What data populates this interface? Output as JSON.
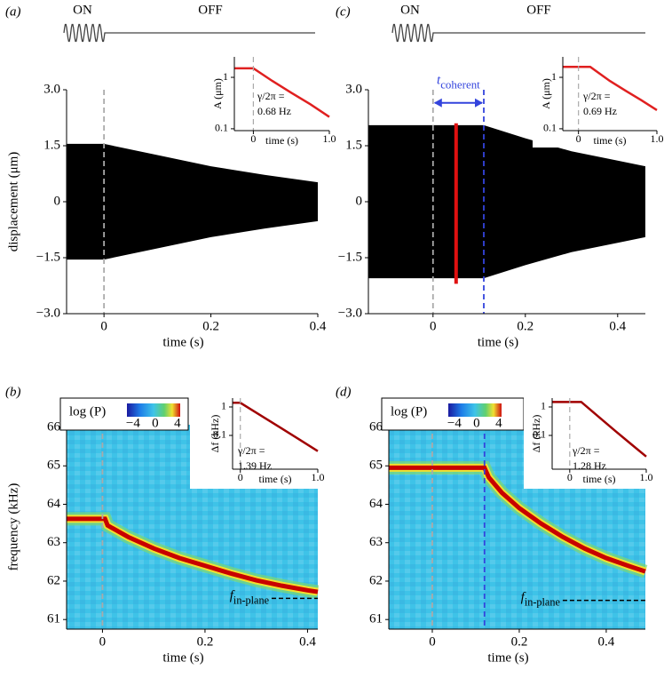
{
  "chart_data": [
    {
      "type": "envelope",
      "label": "(a)",
      "drive_labels": [
        "ON",
        "OFF"
      ],
      "ylabel": "displacement (μm)",
      "xlabel": "time (s)",
      "xlim": [
        -0.07,
        0.4
      ],
      "ylim": [
        -3,
        3
      ],
      "xticks": [
        0,
        0.2,
        0.4
      ],
      "yticks": [
        {
          "value": 3,
          "label": "3.0"
        },
        1.5,
        0,
        {
          "value": -1.5,
          "label": "−1.5"
        },
        {
          "value": -3,
          "label": "−3.0"
        }
      ],
      "x": [
        -0.07,
        0,
        0.1,
        0.2,
        0.3,
        0.4
      ],
      "values": [
        1.55,
        1.55,
        1.25,
        0.95,
        0.72,
        0.52
      ],
      "color": "#000000",
      "events": [
        {
          "x": 0,
          "color": "#aaaaaa"
        }
      ],
      "inset": {
        "type": "line",
        "log_y": true,
        "ylabel": "A (μm)",
        "xlabel": "time (s)",
        "xlim": [
          -0.25,
          1
        ],
        "ylim": [
          0.092,
          2.5
        ],
        "xticks": [
          0,
          {
            "value": 1,
            "label": "1.0"
          }
        ],
        "yticks": [
          1,
          0.1
        ],
        "x": [
          -0.25,
          0,
          0.25,
          0.5,
          0.75,
          1
        ],
        "values": [
          1.5,
          1.5,
          0.85,
          0.5,
          0.3,
          0.17
        ],
        "color": "#e02020",
        "events": [
          {
            "x": 0,
            "color": "#aaaaaa"
          }
        ],
        "annotation": [
          "γ/2π =",
          "0.68 Hz"
        ]
      }
    },
    {
      "type": "spectrogram",
      "label": "(b)",
      "ylabel": "frequency (kHz)",
      "xlabel": "time (s)",
      "xlim": [
        -0.07,
        0.42
      ],
      "ylim": [
        60.75,
        66.07
      ],
      "xticks": [
        0,
        0.2,
        0.4
      ],
      "yticks": [
        61,
        62,
        63,
        64,
        65,
        66
      ],
      "x": [
        -0.07,
        0.005,
        0.01,
        0.05,
        0.1,
        0.15,
        0.2,
        0.25,
        0.3,
        0.35,
        0.4,
        0.42
      ],
      "values": [
        63.62,
        63.62,
        63.45,
        63.15,
        62.85,
        62.6,
        62.4,
        62.2,
        62.02,
        61.88,
        61.76,
        61.72
      ],
      "color": "#c80000",
      "background": "#3ec3e8",
      "events": [
        {
          "x": 0,
          "color": "#aaaaaa"
        }
      ],
      "reference": {
        "text": "f",
        "subscript": "in-plane",
        "x": [
          0.33,
          0.42
        ],
        "y": 61.55
      },
      "colorbar": {
        "label": "log (P)",
        "lim": [
          -5.1,
          4.5
        ],
        "ticks": [
          {
            "value": -4,
            "label": "−4"
          },
          0,
          4
        ]
      },
      "inset": {
        "type": "line",
        "log_y": true,
        "ylabel": "Δf (kHz)",
        "xlabel": "time (s)",
        "xlim": [
          -0.1,
          1
        ],
        "ylim": [
          0.0065,
          2.05
        ],
        "xticks": [
          0,
          {
            "value": 1,
            "label": "1.0"
          }
        ],
        "yticks": [
          1,
          0.1
        ],
        "x": [
          -0.1,
          0,
          0.25,
          0.5,
          0.75,
          1
        ],
        "values": [
          1.4,
          1.4,
          0.53,
          0.2,
          0.075,
          0.028
        ],
        "color": "#a00000",
        "events": [
          {
            "x": 0,
            "color": "#aaaaaa"
          }
        ],
        "annotation": [
          "γ/2π =",
          "1.39 Hz"
        ]
      }
    },
    {
      "type": "envelope",
      "label": "(c)",
      "drive_labels": [
        "ON",
        "OFF"
      ],
      "xlabel": "time (s)",
      "xlim": [
        -0.14,
        0.46
      ],
      "ylim": [
        -3,
        3
      ],
      "xticks": [
        0,
        0.2,
        0.4
      ],
      "yticks": [
        {
          "value": 3,
          "label": "3.0"
        },
        1.5,
        0,
        {
          "value": -1.5,
          "label": "−1.5"
        },
        {
          "value": -3,
          "label": "−3.0"
        }
      ],
      "x": [
        -0.14,
        0.11,
        0.2,
        0.3,
        0.4,
        0.46
      ],
      "values": [
        2.05,
        2.05,
        1.7,
        1.35,
        1.1,
        0.95
      ],
      "color": "#000000",
      "events": [
        {
          "x": 0,
          "color": "#aaaaaa"
        },
        {
          "x": 0.11,
          "color": "#3344dd"
        }
      ],
      "marker": {
        "x": 0.05,
        "range": [
          -2.2,
          2.1
        ],
        "color": "#e01010"
      },
      "annotation": {
        "text": "t",
        "subscript": "coherent",
        "color": "#3344dd",
        "x": [
          0,
          0.11
        ],
        "y": 2.65
      },
      "inset": {
        "type": "line",
        "log_y": true,
        "ylabel": "A (μm)",
        "xlabel": "time (s)",
        "xlim": [
          -0.2,
          1
        ],
        "ylim": [
          0.092,
          2.5
        ],
        "xticks": [
          0,
          {
            "value": 1,
            "label": "1.0"
          }
        ],
        "yticks": [
          1,
          0.1
        ],
        "x": [
          -0.2,
          0.15,
          0.4,
          0.6,
          0.8,
          1
        ],
        "values": [
          1.6,
          1.6,
          0.85,
          0.55,
          0.36,
          0.23
        ],
        "color": "#e02020",
        "events": [
          {
            "x": 0,
            "color": "#aaaaaa"
          }
        ],
        "annotation": [
          "γ/2π =",
          "0.69 Hz"
        ]
      }
    },
    {
      "type": "spectrogram",
      "label": "(d)",
      "xlabel": "time (s)",
      "xlim": [
        -0.1,
        0.49
      ],
      "ylim": [
        60.75,
        66.07
      ],
      "xticks": [
        0,
        0.2,
        0.4
      ],
      "yticks": [
        61,
        62,
        63,
        64,
        65,
        66
      ],
      "x": [
        -0.1,
        0.12,
        0.13,
        0.16,
        0.2,
        0.25,
        0.3,
        0.35,
        0.4,
        0.45,
        0.49
      ],
      "values": [
        64.95,
        64.95,
        64.7,
        64.3,
        63.9,
        63.5,
        63.15,
        62.85,
        62.6,
        62.4,
        62.25
      ],
      "color": "#c80000",
      "background": "#3ec3e8",
      "events": [
        {
          "x": 0,
          "color": "#aaaaaa"
        },
        {
          "x": 0.12,
          "color": "#3344dd"
        }
      ],
      "reference": {
        "text": "f",
        "subscript": "in-plane",
        "x": [
          0.3,
          0.49
        ],
        "y": 61.5
      },
      "colorbar": {
        "label": "log (P)",
        "lim": [
          -5.1,
          4.5
        ],
        "ticks": [
          {
            "value": -4,
            "label": "−4"
          },
          0,
          4
        ]
      },
      "inset": {
        "type": "line",
        "log_y": true,
        "ylabel": "Δf (kHz)",
        "xlabel": "time (s)",
        "xlim": [
          -0.23,
          1
        ],
        "ylim": [
          0.0065,
          2.05
        ],
        "xticks": [
          0,
          {
            "value": 1,
            "label": "1.0"
          }
        ],
        "yticks": [
          1,
          0.1
        ],
        "x": [
          -0.23,
          0.15,
          0.4,
          0.6,
          0.8,
          1
        ],
        "values": [
          1.5,
          1.5,
          0.4,
          0.14,
          0.05,
          0.018
        ],
        "color": "#a00000",
        "events": [
          {
            "x": 0,
            "color": "#aaaaaa"
          }
        ],
        "annotation": [
          "γ/2π =",
          "1.28 Hz"
        ]
      }
    }
  ]
}
